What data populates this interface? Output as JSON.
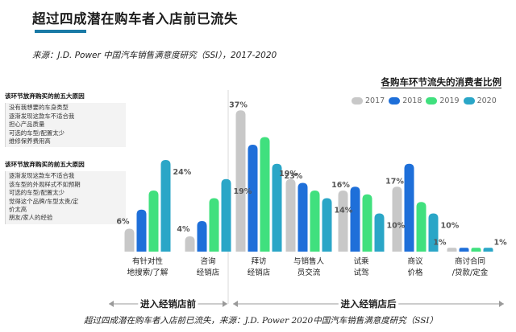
{
  "page": {
    "title": "超过四成潜在购车者入店前已流失",
    "source_top": "来源：J.D. Power 中国汽车销售满意度研究（SSI），2017-2020",
    "footer_note": "超过四成潜在购车者入店前已流失，来源：J.D. Power 2020中国汽车销售满意度研究（SSI）"
  },
  "reason_boxes": [
    {
      "title": "该环节放弃购买的前五大原因",
      "lines": [
        "没有我想要的车身类型",
        "逐渐发现这款车不适合我",
        "担心产品质量",
        "可选的车型/配置太少",
        "维修保养费用高"
      ]
    },
    {
      "title": "该环节放弃购买的前五大原因",
      "lines": [
        "逐渐发现这款车不适合我",
        "该车型的外观样式不如预期",
        "可选的车型/配置太少",
        "觉得这个品牌/车型太贵/定",
        "价太高",
        "朋友/家人的经验"
      ]
    }
  ],
  "chart_data": {
    "type": "bar",
    "title": "各购车环节流失的消费者比例",
    "ylabel": "",
    "xlabel": "",
    "ylim": [
      0,
      40
    ],
    "categories": [
      [
        "有针对性",
        "地搜索/了解"
      ],
      [
        "咨询",
        "经销店"
      ],
      [
        "拜访",
        "经销店"
      ],
      [
        "与销售人",
        "员交流"
      ],
      [
        "试乘",
        "试驾"
      ],
      [
        "商议",
        "价格"
      ],
      [
        "商讨合同",
        "/贷款/定金"
      ]
    ],
    "series": [
      {
        "name": "2017",
        "color": "#c8c8c8",
        "values": [
          6,
          4,
          37,
          19,
          16,
          17,
          1
        ]
      },
      {
        "name": "2018",
        "color": "#1e6fd9",
        "values": [
          11,
          8,
          28,
          18,
          17,
          23,
          1
        ]
      },
      {
        "name": "2019",
        "color": "#40e07e",
        "values": [
          16,
          14,
          30,
          16,
          15,
          13,
          1
        ]
      },
      {
        "name": "2020",
        "color": "#2aa6c7",
        "values": [
          24,
          19,
          23,
          14,
          10,
          10,
          1
        ]
      }
    ],
    "data_labels": [
      {
        "category": 0,
        "series": 0,
        "text": "6%"
      },
      {
        "category": 0,
        "series": 3,
        "text": "24%"
      },
      {
        "category": 1,
        "series": 0,
        "text": "4%"
      },
      {
        "category": 1,
        "series": 3,
        "text": "19%"
      },
      {
        "category": 2,
        "series": 0,
        "text": "37%"
      },
      {
        "category": 2,
        "series": 3,
        "text": "23%"
      },
      {
        "category": 3,
        "series": 0,
        "text": "19%"
      },
      {
        "category": 3,
        "series": 3,
        "text": "14%"
      },
      {
        "category": 4,
        "series": 0,
        "text": "16%"
      },
      {
        "category": 4,
        "series": 3,
        "text": "10%"
      },
      {
        "category": 5,
        "series": 0,
        "text": "17%"
      },
      {
        "category": 5,
        "series": 3,
        "text": "10%"
      },
      {
        "category": 6,
        "series": 0,
        "text": "1%"
      },
      {
        "category": 6,
        "series": 3,
        "text": "1%"
      }
    ],
    "groups": [
      {
        "label": "进入经销店前",
        "from": 0,
        "to": 1
      },
      {
        "label": "进入经销店后",
        "from": 2,
        "to": 6
      }
    ]
  }
}
